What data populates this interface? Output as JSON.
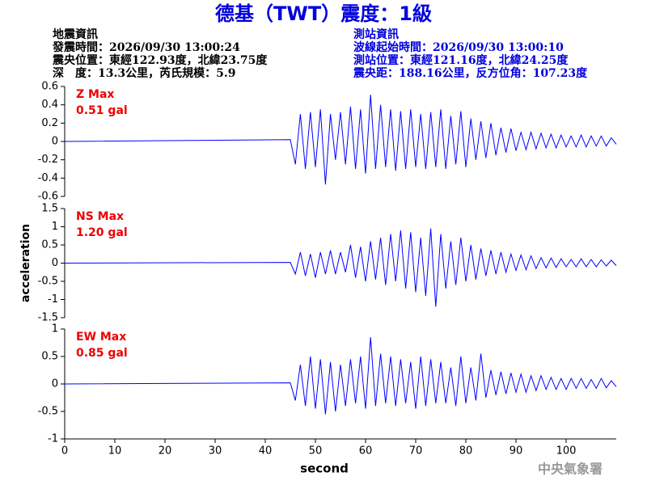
{
  "header": {
    "title": "德基（TWT）震度：1級",
    "left": [
      "地震資訊",
      "發震時間：2026/09/30 13:00:24",
      "震央位置：東經122.93度，北緯23.75度",
      "深　度：13.3公里，芮氏規模：5.9"
    ],
    "right": [
      "測站資訊",
      "波線起始時間：2026/09/30 13:00:10",
      "測站位置：東經121.16度，北緯24.25度",
      "震央距：188.16公里，反方位角：107.23度"
    ],
    "footer": "中央氣象署"
  },
  "chart_data": [
    {
      "type": "line",
      "annotation": [
        "Z Max",
        "0.51 gal"
      ],
      "color": "#0000ff",
      "xlim": [
        0,
        110
      ],
      "ylim": [
        -0.6,
        0.6
      ],
      "yticks": [
        0.6,
        0.4,
        0.2,
        0,
        -0.2,
        -0.4,
        -0.6
      ],
      "x": [
        0,
        45,
        46,
        47,
        48,
        49,
        50,
        51,
        52,
        53,
        54,
        55,
        56,
        57,
        58,
        59,
        60,
        61,
        62,
        63,
        64,
        65,
        66,
        67,
        68,
        69,
        70,
        71,
        72,
        73,
        74,
        75,
        76,
        77,
        78,
        79,
        80,
        81,
        82,
        83,
        84,
        85,
        86,
        87,
        88,
        89,
        90,
        91,
        92,
        93,
        94,
        95,
        96,
        97,
        98,
        99,
        100,
        101,
        102,
        103,
        104,
        105,
        106,
        107,
        108,
        109,
        110
      ],
      "values": [
        0,
        0.02,
        -0.25,
        0.3,
        -0.3,
        0.32,
        -0.28,
        0.35,
        -0.47,
        0.3,
        -0.2,
        0.32,
        -0.25,
        0.38,
        -0.3,
        0.35,
        -0.35,
        0.51,
        -0.3,
        0.4,
        -0.28,
        0.35,
        -0.32,
        0.33,
        -0.3,
        0.35,
        -0.28,
        0.3,
        -0.3,
        0.32,
        -0.28,
        0.35,
        -0.3,
        0.28,
        -0.25,
        0.33,
        -0.28,
        0.25,
        -0.2,
        0.22,
        -0.18,
        0.2,
        -0.15,
        0.15,
        -0.12,
        0.14,
        -0.1,
        0.1,
        -0.09,
        0.1,
        -0.08,
        0.09,
        -0.07,
        0.08,
        -0.07,
        0.07,
        -0.06,
        0.06,
        -0.06,
        0.07,
        -0.06,
        0.06,
        -0.05,
        0.06,
        -0.05,
        0.04,
        -0.03
      ]
    },
    {
      "type": "line",
      "annotation": [
        "NS Max",
        "1.20 gal"
      ],
      "color": "#0000ff",
      "xlim": [
        0,
        110
      ],
      "ylim": [
        -1.5,
        1.5
      ],
      "yticks": [
        1.5,
        1,
        0.5,
        0,
        -0.5,
        -1,
        -1.5
      ],
      "y_label": "acceleration",
      "x": [
        0,
        45,
        46,
        47,
        48,
        49,
        50,
        51,
        52,
        53,
        54,
        55,
        56,
        57,
        58,
        59,
        60,
        61,
        62,
        63,
        64,
        65,
        66,
        67,
        68,
        69,
        70,
        71,
        72,
        73,
        74,
        75,
        76,
        77,
        78,
        79,
        80,
        81,
        82,
        83,
        84,
        85,
        86,
        87,
        88,
        89,
        90,
        91,
        92,
        93,
        94,
        95,
        96,
        97,
        98,
        99,
        100,
        101,
        102,
        103,
        104,
        105,
        106,
        107,
        108,
        109,
        110
      ],
      "values": [
        0,
        0.02,
        -0.3,
        0.3,
        -0.35,
        0.25,
        -0.4,
        0.3,
        -0.3,
        0.35,
        -0.3,
        0.3,
        -0.25,
        0.5,
        -0.4,
        0.45,
        -0.5,
        0.6,
        -0.45,
        0.7,
        -0.6,
        0.8,
        -0.5,
        0.9,
        -0.7,
        0.85,
        -0.8,
        0.7,
        -0.9,
        0.95,
        -1.2,
        0.8,
        -0.7,
        0.6,
        -0.6,
        0.7,
        -0.5,
        0.5,
        -0.45,
        0.4,
        -0.35,
        0.35,
        -0.3,
        0.3,
        -0.25,
        0.25,
        -0.2,
        0.22,
        -0.18,
        0.2,
        -0.15,
        0.15,
        -0.13,
        0.14,
        -0.12,
        0.12,
        -0.1,
        0.1,
        -0.1,
        0.12,
        -0.1,
        0.1,
        -0.1,
        0.09,
        -0.08,
        0.08,
        -0.07
      ]
    },
    {
      "type": "line",
      "annotation": [
        "EW Max",
        "0.85 gal"
      ],
      "color": "#0000ff",
      "xlim": [
        0,
        110
      ],
      "ylim": [
        -1,
        1
      ],
      "yticks": [
        1,
        0.5,
        0,
        -0.5,
        -1
      ],
      "xticks": [
        0,
        10,
        20,
        30,
        40,
        50,
        60,
        70,
        80,
        90,
        100
      ],
      "x_label": "second",
      "x": [
        0,
        45,
        46,
        47,
        48,
        49,
        50,
        51,
        52,
        53,
        54,
        55,
        56,
        57,
        58,
        59,
        60,
        61,
        62,
        63,
        64,
        65,
        66,
        67,
        68,
        69,
        70,
        71,
        72,
        73,
        74,
        75,
        76,
        77,
        78,
        79,
        80,
        81,
        82,
        83,
        84,
        85,
        86,
        87,
        88,
        89,
        90,
        91,
        92,
        93,
        94,
        95,
        96,
        97,
        98,
        99,
        100,
        101,
        102,
        103,
        104,
        105,
        106,
        107,
        108,
        109,
        110
      ],
      "values": [
        0,
        0.02,
        -0.3,
        0.35,
        -0.4,
        0.5,
        -0.45,
        0.45,
        -0.55,
        0.4,
        -0.5,
        0.35,
        -0.4,
        0.45,
        -0.35,
        0.5,
        -0.45,
        0.85,
        -0.4,
        0.55,
        -0.35,
        0.5,
        -0.4,
        0.45,
        -0.35,
        0.4,
        -0.45,
        0.5,
        -0.4,
        0.45,
        -0.35,
        0.4,
        -0.35,
        0.3,
        -0.4,
        0.5,
        -0.35,
        0.3,
        -0.3,
        0.55,
        -0.25,
        0.25,
        -0.2,
        0.22,
        -0.18,
        0.2,
        -0.15,
        0.18,
        -0.15,
        0.15,
        -0.12,
        0.15,
        -0.1,
        0.12,
        -0.1,
        0.1,
        -0.1,
        0.1,
        -0.08,
        0.1,
        -0.08,
        0.08,
        -0.08,
        0.1,
        -0.07,
        0.06,
        -0.05
      ]
    }
  ]
}
